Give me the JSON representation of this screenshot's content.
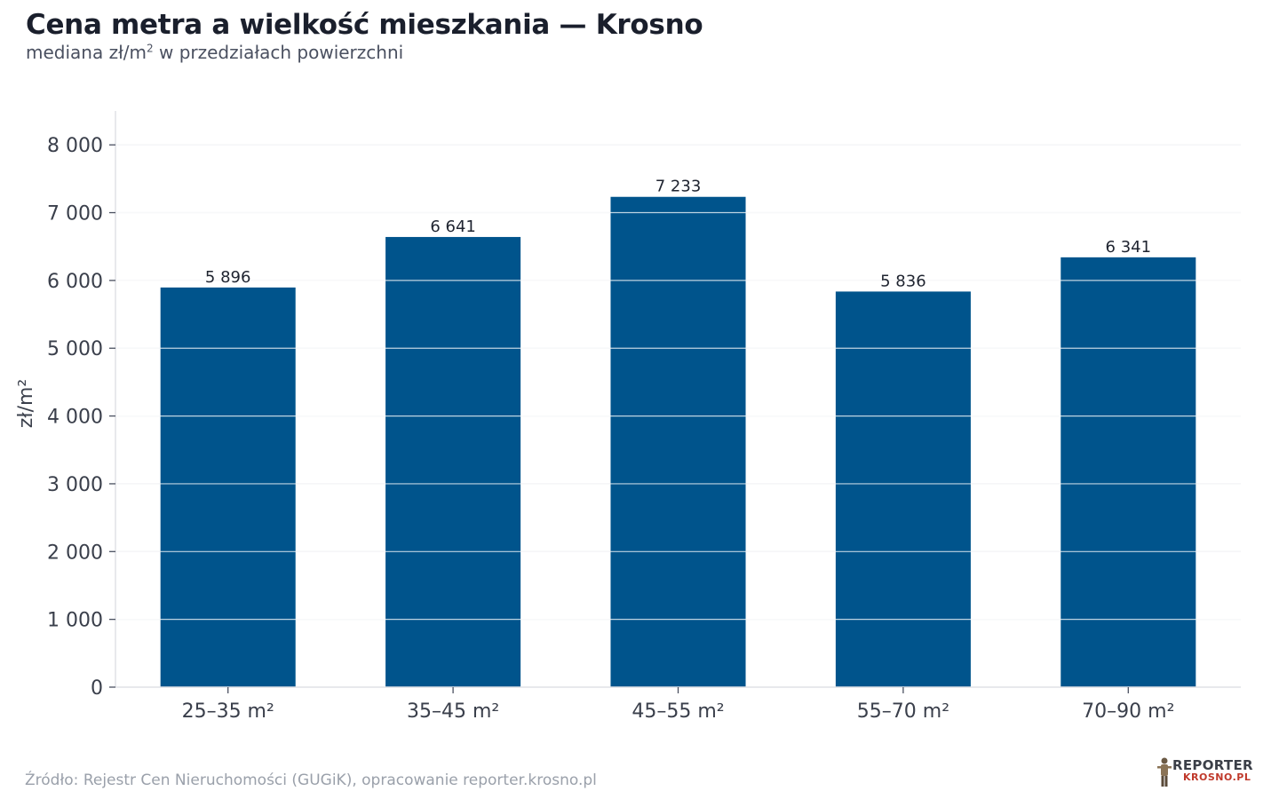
{
  "header": {
    "title": "Cena metra a wielkość mieszkania — Krosno",
    "subtitle_main": "mediana zł/m",
    "subtitle_sup": "2",
    "subtitle_rest": " w przedziałach powierzchni"
  },
  "chart_data": {
    "type": "bar",
    "categories": [
      "25–35 m²",
      "35–45 m²",
      "45–55 m²",
      "55–70 m²",
      "70–90 m²"
    ],
    "values": [
      5896,
      6641,
      7233,
      5836,
      6341
    ],
    "value_labels": [
      "5 896",
      "6 641",
      "7 233",
      "5 836",
      "6 341"
    ],
    "ylabel": "zł/m²",
    "xlabel": "",
    "ylim": [
      0,
      8500
    ],
    "yticks": [
      0,
      1000,
      2000,
      3000,
      4000,
      5000,
      6000,
      7000,
      8000
    ],
    "ytick_labels": [
      "0",
      "1 000",
      "2 000",
      "3 000",
      "4 000",
      "5 000",
      "6 000",
      "7 000",
      "8 000"
    ],
    "grid": true,
    "bar_color": "#00548c"
  },
  "footer": {
    "source": "Źródło: Rejestr Cen Nieruchomości (GUGiK), opracowanie reporter.krosno.pl",
    "logo_top": "REPORTER",
    "logo_bottom": "KROSNO.PL"
  }
}
